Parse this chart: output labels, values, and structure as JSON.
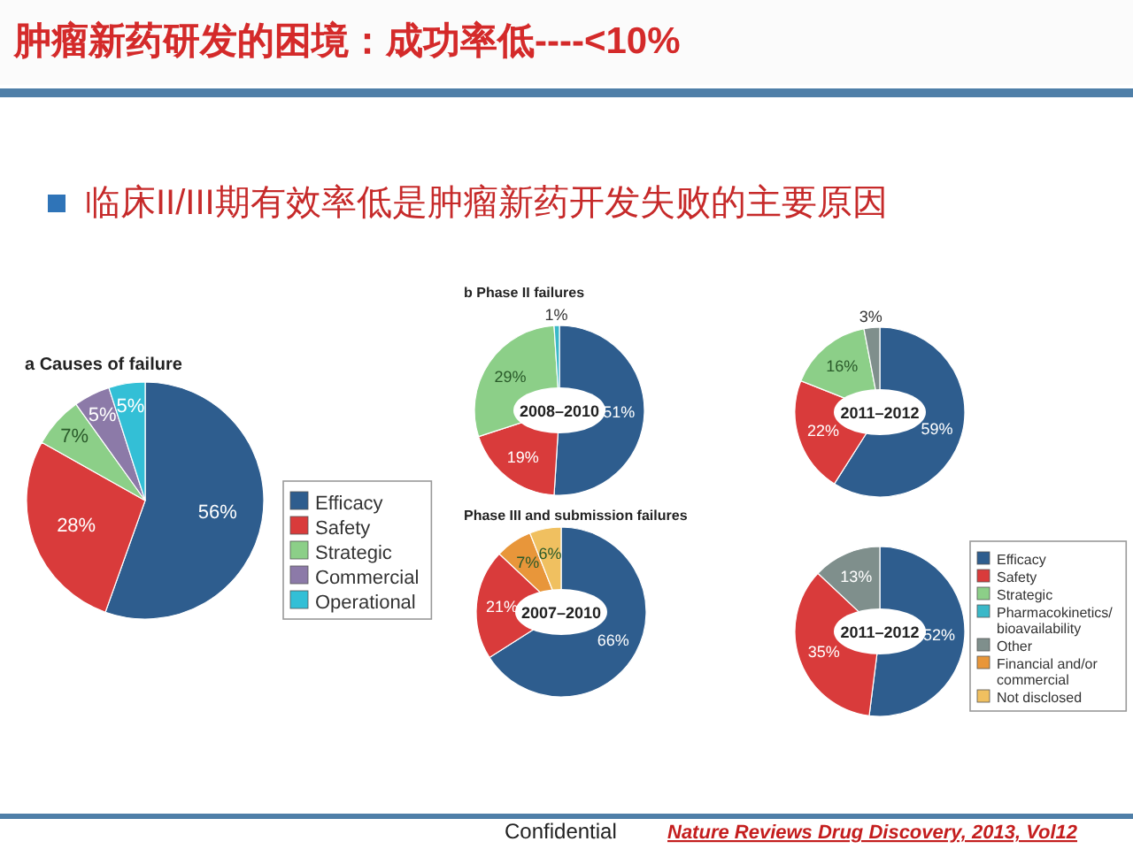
{
  "chart_data": [
    {
      "type": "other",
      "title": "肿瘤新药研发的困境：成功率低----<10%",
      "subtitle": "临床II/III期有效率低是肿瘤新药开发失败的主要原因",
      "annotations": [
        "Confidential",
        "Nature Reviews Drug Discovery, 2013, Vol12"
      ]
    },
    {
      "type": "pie",
      "title": "a  Causes of failure",
      "categories": [
        "Efficacy",
        "Safety",
        "Strategic",
        "Commercial",
        "Operational"
      ],
      "values": [
        56,
        28,
        7,
        5,
        5
      ],
      "value_labels": [
        "56%",
        "28%",
        "7%",
        "5%",
        "5%"
      ],
      "colors": [
        "#2e5d8e",
        "#d93b3b",
        "#8ccf88",
        "#8c7aa8",
        "#33bfd6"
      ],
      "legend": "right"
    },
    {
      "type": "donut",
      "title": "b  Phase II failures",
      "annotations": [
        "2008–2010"
      ],
      "categories": [
        null,
        null,
        null,
        null
      ],
      "values": [
        51,
        19,
        29,
        1
      ],
      "value_labels": [
        "51%",
        "19%",
        "29%",
        "1%"
      ],
      "colors": [
        "#2e5d8e",
        "#d93b3b",
        "#8ccf88",
        "#3ab8c8"
      ]
    },
    {
      "type": "donut",
      "annotations": [
        "2011–2012"
      ],
      "categories": [
        null,
        null,
        null,
        null
      ],
      "values": [
        59,
        22,
        16,
        3
      ],
      "value_labels": [
        "59%",
        "22%",
        "16%",
        "3%"
      ],
      "colors": [
        "#2e5d8e",
        "#d93b3b",
        "#8ccf88",
        "#7f8f8c"
      ]
    },
    {
      "type": "donut",
      "title": "Phase III and submission failures",
      "annotations": [
        "2007–2010"
      ],
      "categories": [
        null,
        null,
        null,
        null
      ],
      "values": [
        66,
        21,
        7,
        6
      ],
      "value_labels": [
        "66%",
        "21%",
        "7%",
        "6%"
      ],
      "colors": [
        "#2e5d8e",
        "#d93b3b",
        "#e8963a",
        "#f0c060"
      ]
    },
    {
      "type": "donut",
      "annotations": [
        "2011–2012"
      ],
      "categories": [
        "Efficacy",
        "Safety",
        "Strategic",
        "Pharmacokinetics/ bioavailability",
        "Other",
        "Financial and/or commercial",
        "Not disclosed"
      ],
      "values": [
        52,
        35,
        0,
        0,
        13,
        0,
        0
      ],
      "value_labels": [
        "52%",
        "35%",
        null,
        null,
        "13%",
        null,
        null
      ],
      "colors": [
        "#2e5d8e",
        "#d93b3b",
        "#8ccf88",
        "#3ab8c8",
        "#7f8f8c",
        "#e8963a",
        "#f0c060"
      ],
      "legend": "right"
    }
  ]
}
